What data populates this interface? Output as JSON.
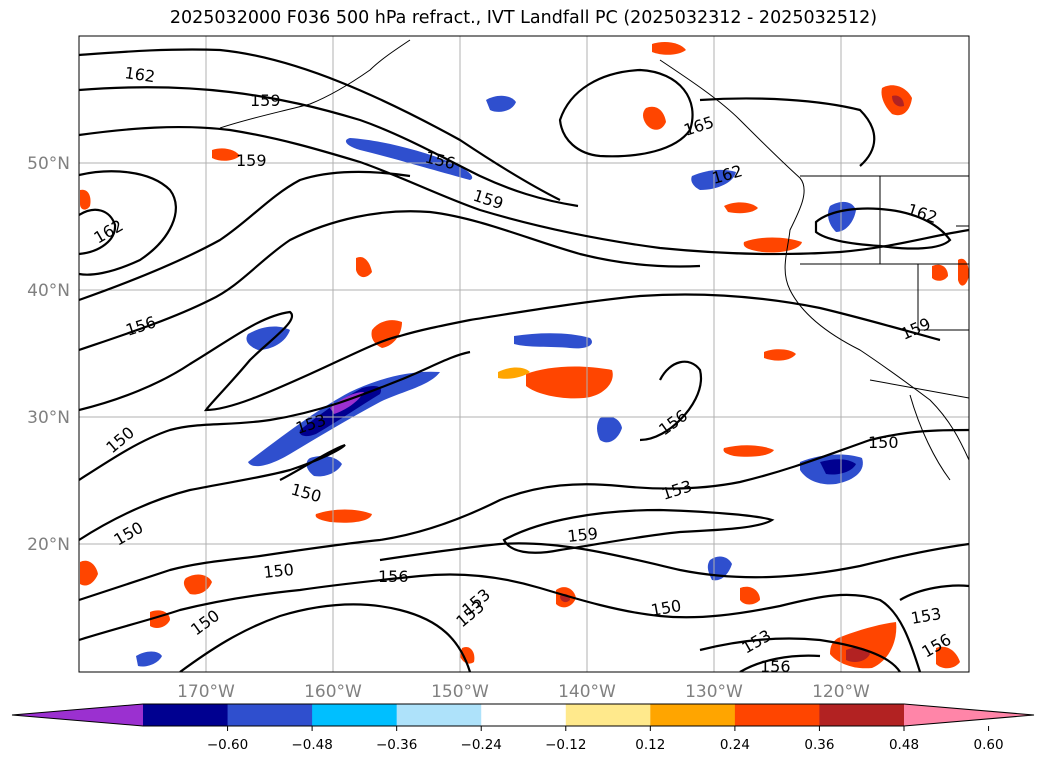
{
  "title": "2025032000 F036 500 hPa refract., IVT Landfall PC (2025032312 - 2025032512)",
  "map": {
    "lat_labels": [
      "50°N",
      "40°N",
      "30°N",
      "20°N"
    ],
    "lon_labels": [
      "170°W",
      "160°W",
      "150°W",
      "140°W",
      "130°W",
      "120°W"
    ],
    "contour_labels": [
      "162",
      "159",
      "156",
      "159",
      "162",
      "162",
      "159",
      "156",
      "150",
      "153",
      "150",
      "150",
      "150",
      "156",
      "159",
      "150",
      "153",
      "165",
      "162",
      "159",
      "156",
      "153",
      "150",
      "150",
      "153",
      "156",
      "153",
      "156",
      "153"
    ]
  },
  "colorbar": {
    "tick_labels": [
      "−0.60",
      "−0.48",
      "−0.36",
      "−0.24",
      "−0.12",
      "0.12",
      "0.24",
      "0.36",
      "0.48",
      "0.60"
    ],
    "colors": [
      "#9b30d0",
      "#000090",
      "#2f4fce",
      "#00bfff",
      "#aee2fa",
      "#ffffff",
      "#ffe98c",
      "#ffa500",
      "#ff4500",
      "#b22222",
      "#ff85a8"
    ]
  }
}
